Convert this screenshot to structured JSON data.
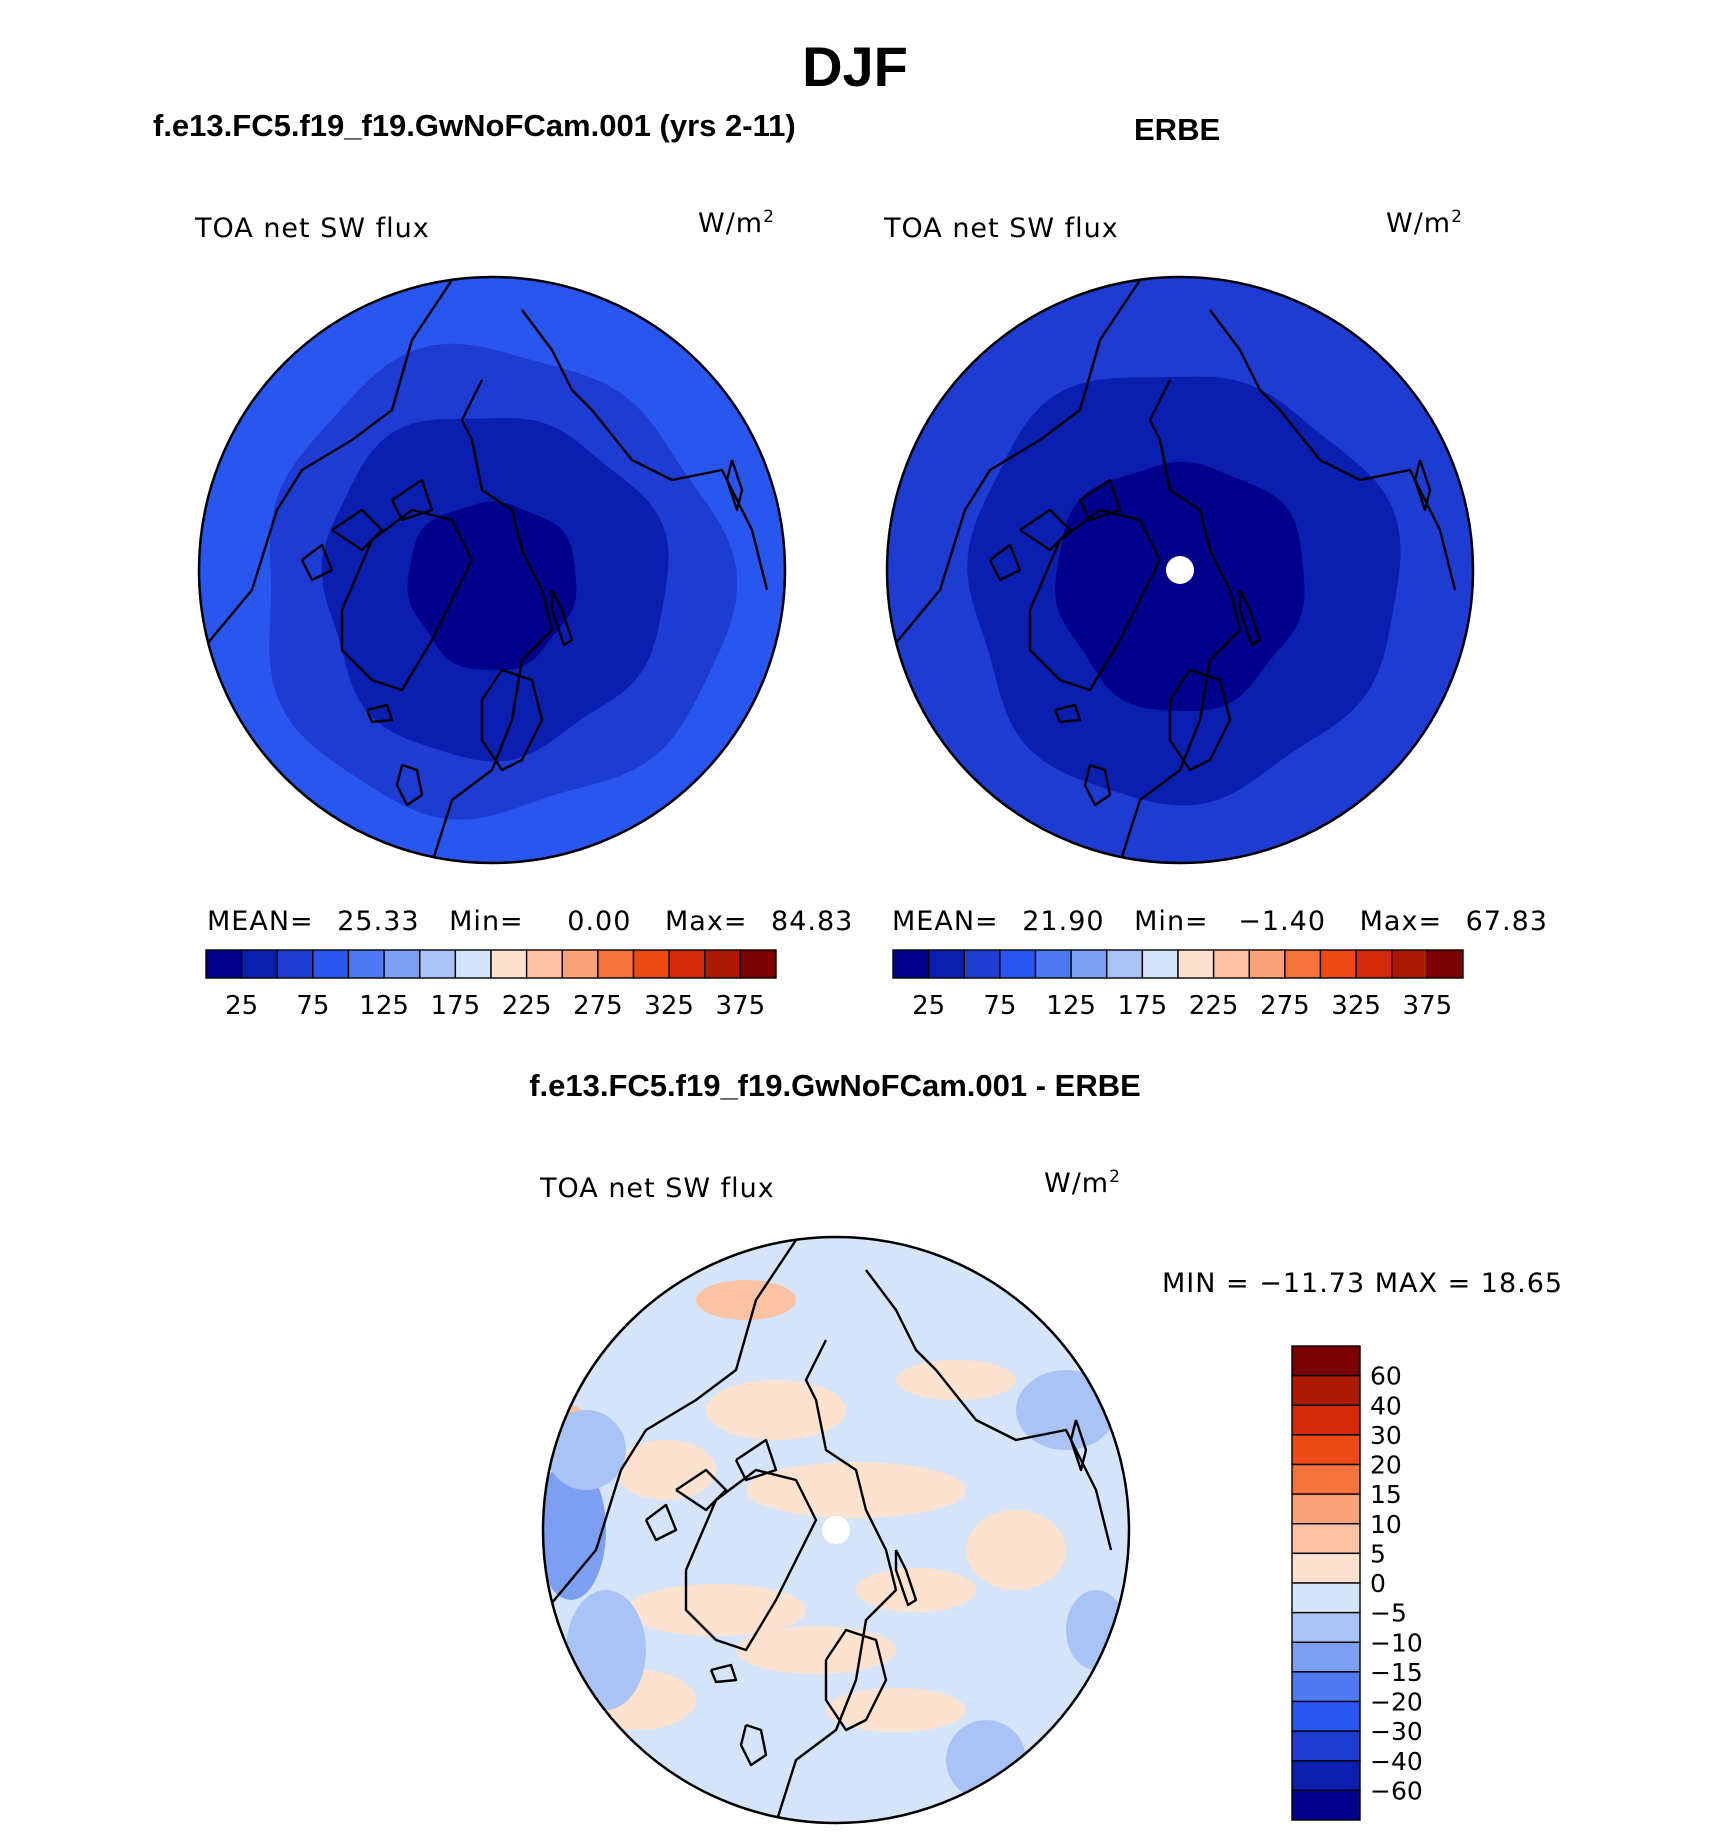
{
  "figure_title": "DJF",
  "panels": {
    "model": {
      "title": "f.e13.FC5.f19_f19.GwNoFCam.001 (yrs 2-11)",
      "variable": "TOA net SW flux",
      "units": "W/m",
      "units_sup": "2",
      "stats": {
        "mean_label": "MEAN=",
        "mean": "25.33",
        "min_label": "Min=",
        "min": "0.00",
        "max_label": "Max=",
        "max": "84.83"
      }
    },
    "obs": {
      "title": "ERBE",
      "variable": "TOA net SW flux",
      "units": "W/m",
      "units_sup": "2",
      "stats": {
        "mean_label": "MEAN=",
        "mean": "21.90",
        "min_label": "Min=",
        "min": "−1.40",
        "max_label": "Max=",
        "max": "67.83"
      }
    },
    "diff": {
      "title": "f.e13.FC5.f19_f19.GwNoFCam.001 - ERBE",
      "variable": "TOA net SW flux",
      "units": "W/m",
      "units_sup": "2",
      "minmax": "MIN = −11.73 MAX =   18.65"
    }
  },
  "chart_data": [
    {
      "type": "heatmap",
      "projection": "north polar stereographic",
      "title": "f.e13.FC5.f19_f19.GwNoFCam.001 (yrs 2-11)",
      "variable": "TOA net SW flux",
      "units": "W/m2",
      "stats": {
        "mean": 25.33,
        "min": 0.0,
        "max": 84.83
      },
      "colorbar": {
        "orientation": "horizontal",
        "levels": [
          25,
          50,
          75,
          100,
          125,
          150,
          175,
          200,
          225,
          250,
          275,
          300,
          325,
          350,
          375
        ],
        "tick_labels": [
          "25",
          "75",
          "125",
          "175",
          "225",
          "275",
          "325",
          "375"
        ],
        "colors": [
          "#00008b",
          "#0a1fb0",
          "#1e3cd2",
          "#2a56f0",
          "#4e79f0",
          "#7d9ff2",
          "#aac3f6",
          "#d6e4fa",
          "#fde3cf",
          "#fbc3a4",
          "#f9a27a",
          "#f7733e",
          "#ee4a17",
          "#d42a08",
          "#ad1a03",
          "#7b0000"
        ]
      },
      "field_bands": [
        {
          "lat_range": [
            75,
            90
          ],
          "value": 10
        },
        {
          "lat_range": [
            60,
            75
          ],
          "value": 30
        },
        {
          "lat_range": [
            50,
            60
          ],
          "value": 55
        },
        {
          "lat_range": [
            40,
            50
          ],
          "value": 75
        }
      ]
    },
    {
      "type": "heatmap",
      "projection": "north polar stereographic",
      "title": "ERBE",
      "variable": "TOA net SW flux",
      "units": "W/m2",
      "stats": {
        "mean": 21.9,
        "min": -1.4,
        "max": 67.83
      },
      "colorbar": {
        "orientation": "horizontal",
        "levels": [
          25,
          50,
          75,
          100,
          125,
          150,
          175,
          200,
          225,
          250,
          275,
          300,
          325,
          350,
          375
        ],
        "tick_labels": [
          "25",
          "75",
          "125",
          "175",
          "225",
          "275",
          "325",
          "375"
        ],
        "colors": [
          "#00008b",
          "#0a1fb0",
          "#1e3cd2",
          "#2a56f0",
          "#4e79f0",
          "#7d9ff2",
          "#aac3f6",
          "#d6e4fa",
          "#fde3cf",
          "#fbc3a4",
          "#f9a27a",
          "#f7733e",
          "#ee4a17",
          "#d42a08",
          "#ad1a03",
          "#7b0000"
        ]
      },
      "field_bands": [
        {
          "lat_range": [
            68,
            90
          ],
          "value": 10
        },
        {
          "lat_range": [
            53,
            68
          ],
          "value": 35
        },
        {
          "lat_range": [
            40,
            53
          ],
          "value": 55
        }
      ],
      "missing_at_pole": true
    },
    {
      "type": "heatmap",
      "projection": "north polar stereographic",
      "title": "f.e13.FC5.f19_f19.GwNoFCam.001 - ERBE",
      "variable": "TOA net SW flux",
      "units": "W/m2",
      "stats": {
        "min": -11.73,
        "max": 18.65
      },
      "colorbar": {
        "orientation": "vertical",
        "levels": [
          -60,
          -40,
          -30,
          -20,
          -15,
          -10,
          -5,
          0,
          5,
          10,
          15,
          20,
          30,
          40,
          60
        ],
        "tick_labels": [
          "60",
          "40",
          "30",
          "20",
          "15",
          "10",
          "5",
          "0",
          "−5",
          "−10",
          "−15",
          "−20",
          "−30",
          "−40",
          "−60"
        ],
        "colors": [
          "#7b0000",
          "#ad1a03",
          "#d42a08",
          "#ee4a17",
          "#f7733e",
          "#f9a27a",
          "#fbc3a4",
          "#fde3cf",
          "#d6e4fa",
          "#aac3f6",
          "#7d9ff2",
          "#4e79f0",
          "#2a56f0",
          "#1e3cd2",
          "#0a1fb0",
          "#00008b"
        ]
      },
      "dominant_value_range": [
        0,
        5
      ],
      "missing_at_pole": true
    }
  ]
}
